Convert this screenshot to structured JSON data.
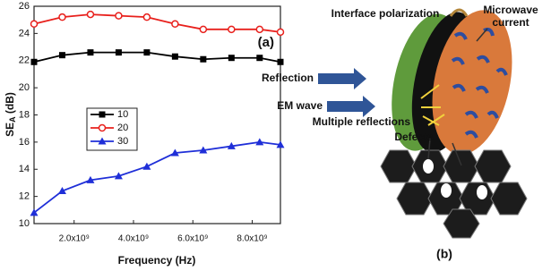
{
  "chart_data": {
    "type": "line",
    "ylabel": {
      "main": "SE",
      "sub": "A",
      "unit": " (dB)"
    },
    "xlabel": "Frequency (Hz)",
    "annotation": "(a)",
    "x": [
      650000000,
      1600000000,
      2550000000,
      3500000000,
      4450000000,
      5400000000,
      6350000000,
      7300000000,
      8250000000,
      8950000000
    ],
    "series": [
      {
        "name": "10",
        "color": "#000000",
        "marker": "square",
        "values": [
          21.9,
          22.4,
          22.6,
          22.6,
          22.6,
          22.3,
          22.1,
          22.2,
          22.2,
          21.9
        ]
      },
      {
        "name": "20",
        "color": "#e8201c",
        "marker": "circle",
        "values": [
          24.7,
          25.2,
          25.4,
          25.3,
          25.2,
          24.7,
          24.3,
          24.3,
          24.3,
          24.1
        ]
      },
      {
        "name": "30",
        "color": "#1f2fd8",
        "marker": "triangle",
        "values": [
          10.8,
          12.4,
          13.2,
          13.5,
          14.2,
          15.2,
          15.4,
          15.7,
          16.0,
          15.8
        ]
      }
    ],
    "xlim": [
      650000000,
      8950000000
    ],
    "xticks": [
      {
        "value": 2000000000,
        "label": "2.0x10⁹"
      },
      {
        "value": 4000000000,
        "label": "4.0x10⁹"
      },
      {
        "value": 6000000000,
        "label": "6.0x10⁹"
      },
      {
        "value": 8000000000,
        "label": "8.0x10⁹"
      }
    ],
    "ylim": [
      10,
      26
    ],
    "yticks": [
      10,
      12,
      14,
      16,
      18,
      20,
      22,
      24,
      26
    ],
    "grid": false
  },
  "diagram": {
    "labels": {
      "interface": "Interface polarization",
      "microwave": "Microwave",
      "current": "current",
      "reflection": "Reflection",
      "em": "EM wave",
      "multiple": "Multiple reflections",
      "defects": "Defects",
      "panel": "(b)"
    }
  }
}
